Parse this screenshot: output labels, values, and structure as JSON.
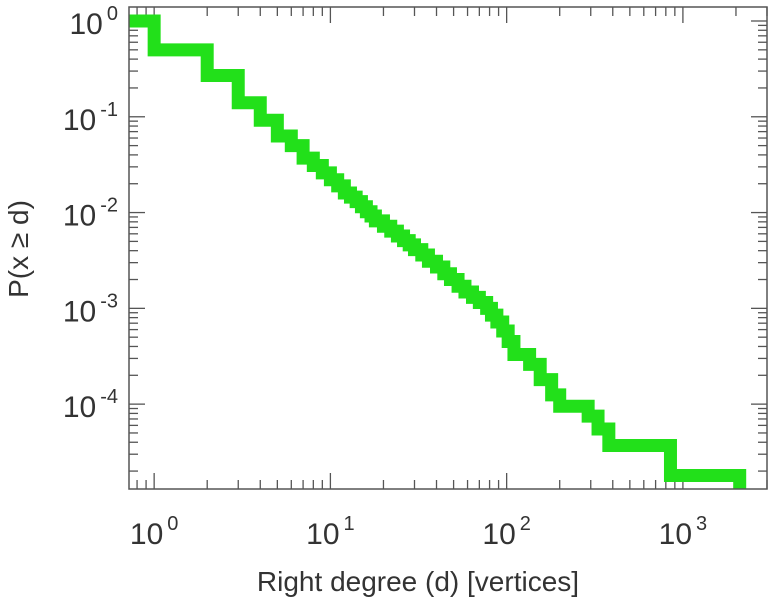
{
  "chart_data": {
    "type": "line",
    "title": "",
    "xlabel": "Right degree (d) [vertices]",
    "ylabel": "P(x ≥ d)",
    "x_scale": "log",
    "y_scale": "log",
    "xlim": [
      0.72,
      3000
    ],
    "ylim": [
      1.3e-05,
      1.4
    ],
    "x_ticks": [
      {
        "base": "10",
        "exp": "0",
        "value": 1
      },
      {
        "base": "10",
        "exp": "1",
        "value": 10
      },
      {
        "base": "10",
        "exp": "2",
        "value": 100
      },
      {
        "base": "10",
        "exp": "3",
        "value": 1000
      }
    ],
    "y_ticks": [
      {
        "base": "10",
        "exp": "0",
        "value": 1
      },
      {
        "base": "10",
        "exp": "-1",
        "value": 0.1
      },
      {
        "base": "10",
        "exp": "-2",
        "value": 0.01
      },
      {
        "base": "10",
        "exp": "-3",
        "value": 0.001
      },
      {
        "base": "10",
        "exp": "-4",
        "value": 0.0001
      }
    ],
    "grid": false,
    "series": [
      {
        "color": "#22e01a",
        "step": true,
        "points": [
          [
            0.72,
            1.0
          ],
          [
            1,
            1.0
          ],
          [
            1,
            0.5
          ],
          [
            2,
            0.5
          ],
          [
            2,
            0.27
          ],
          [
            3,
            0.27
          ],
          [
            3,
            0.14
          ],
          [
            4,
            0.14
          ],
          [
            4,
            0.092
          ],
          [
            5,
            0.092
          ],
          [
            5,
            0.063
          ],
          [
            6,
            0.063
          ],
          [
            6,
            0.05
          ],
          [
            7,
            0.05
          ],
          [
            7,
            0.037
          ],
          [
            8,
            0.037
          ],
          [
            8,
            0.031
          ],
          [
            9,
            0.031
          ],
          [
            9,
            0.026
          ],
          [
            10,
            0.026
          ],
          [
            10,
            0.022
          ],
          [
            11,
            0.022
          ],
          [
            11,
            0.019
          ],
          [
            12,
            0.019
          ],
          [
            12,
            0.016
          ],
          [
            13,
            0.016
          ],
          [
            13,
            0.0145
          ],
          [
            14,
            0.0145
          ],
          [
            14,
            0.013
          ],
          [
            15,
            0.013
          ],
          [
            15,
            0.0115
          ],
          [
            16,
            0.0115
          ],
          [
            16,
            0.0102
          ],
          [
            17,
            0.0102
          ],
          [
            17,
            0.0092
          ],
          [
            18,
            0.0092
          ],
          [
            18,
            0.0082
          ],
          [
            20,
            0.0082
          ],
          [
            20,
            0.0072
          ],
          [
            22,
            0.0072
          ],
          [
            22,
            0.0064
          ],
          [
            24,
            0.0064
          ],
          [
            24,
            0.0057
          ],
          [
            26,
            0.0057
          ],
          [
            26,
            0.0051
          ],
          [
            28,
            0.0051
          ],
          [
            28,
            0.0046
          ],
          [
            30,
            0.0046
          ],
          [
            30,
            0.0041
          ],
          [
            33,
            0.0041
          ],
          [
            33,
            0.0036
          ],
          [
            36,
            0.0036
          ],
          [
            36,
            0.0031
          ],
          [
            40,
            0.0031
          ],
          [
            40,
            0.0027
          ],
          [
            44,
            0.0027
          ],
          [
            44,
            0.0023
          ],
          [
            48,
            0.0023
          ],
          [
            48,
            0.002
          ],
          [
            53,
            0.002
          ],
          [
            53,
            0.0017
          ],
          [
            58,
            0.0017
          ],
          [
            58,
            0.00148
          ],
          [
            64,
            0.00148
          ],
          [
            64,
            0.0013
          ],
          [
            70,
            0.0013
          ],
          [
            70,
            0.00115
          ],
          [
            77,
            0.00115
          ],
          [
            77,
            0.001
          ],
          [
            82,
            0.001
          ],
          [
            82,
            0.00085
          ],
          [
            88,
            0.00085
          ],
          [
            88,
            0.00072
          ],
          [
            95,
            0.00072
          ],
          [
            95,
            0.00058
          ],
          [
            102,
            0.00058
          ],
          [
            102,
            0.00045
          ],
          [
            110,
            0.00045
          ],
          [
            110,
            0.00033
          ],
          [
            135,
            0.00033
          ],
          [
            135,
            0.00026
          ],
          [
            155,
            0.00026
          ],
          [
            155,
            0.00018
          ],
          [
            180,
            0.00018
          ],
          [
            180,
            0.000125
          ],
          [
            200,
            0.000125
          ],
          [
            200,
            9.5e-05
          ],
          [
            290,
            9.5e-05
          ],
          [
            290,
            7.5e-05
          ],
          [
            330,
            7.5e-05
          ],
          [
            330,
            5.5e-05
          ],
          [
            380,
            5.5e-05
          ],
          [
            380,
            3.7e-05
          ],
          [
            850,
            3.7e-05
          ],
          [
            850,
            1.8e-05
          ],
          [
            2100,
            1.8e-05
          ],
          [
            2100,
            1.3e-05
          ]
        ]
      }
    ]
  }
}
